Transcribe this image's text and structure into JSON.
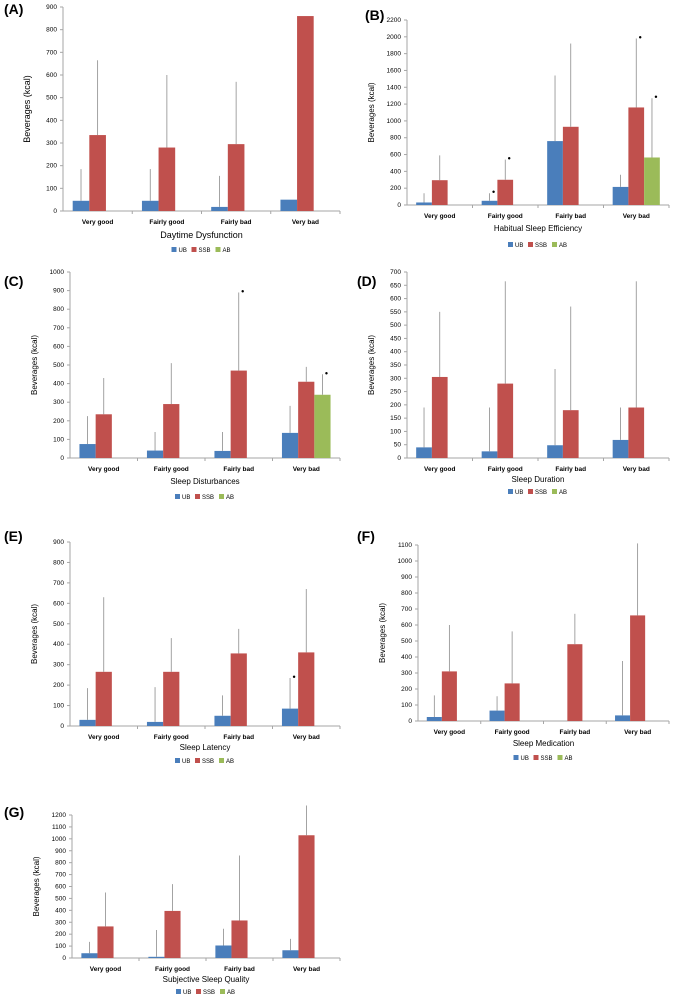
{
  "colors": {
    "UB": "#4a7ebb",
    "SSB": "#c0504d",
    "AB": "#9bbb59",
    "axis": "#a6a6a6",
    "error": "#8c8c8c"
  },
  "legend_labels": [
    "UB",
    "SSB",
    "AB"
  ],
  "chart_data": [
    {
      "type": "bar",
      "label": "(A)",
      "title": "Daytime Dysfunction",
      "ylabel": "Beverages (kcal)",
      "categories": [
        "Very good",
        "Fairly good",
        "Fairly bad",
        "Very bad"
      ],
      "ylim": [
        0,
        900
      ],
      "ytick_step": 100,
      "yticks": [
        "0",
        "100",
        "200",
        "300",
        "400",
        "500",
        "600",
        "700",
        "800",
        "900"
      ],
      "series": [
        {
          "name": "UB",
          "values": [
            45,
            45,
            18,
            50
          ],
          "error": [
            185,
            185,
            155,
            null
          ]
        },
        {
          "name": "SSB",
          "values": [
            335,
            280,
            295,
            860
          ],
          "error": [
            665,
            600,
            570,
            null
          ]
        },
        {
          "name": "AB",
          "values": [
            null,
            null,
            null,
            null
          ],
          "error": [
            null,
            null,
            null,
            null
          ]
        }
      ],
      "significance": []
    },
    {
      "type": "bar",
      "label": "(B)",
      "title": "Habitual Sleep Efficiency",
      "ylabel": "Beverages (kcal)",
      "categories": [
        "Very good",
        "Fairly good",
        "Fairly bad",
        "Very bad"
      ],
      "ylim": [
        0,
        2200
      ],
      "ytick_step": 200,
      "yticks": [
        "0",
        "200",
        "400",
        "600",
        "800",
        "1000",
        "1200",
        "1400",
        "1600",
        "1800",
        "2000",
        "2200"
      ],
      "series": [
        {
          "name": "UB",
          "values": [
            30,
            50,
            760,
            215
          ],
          "error": [
            140,
            140,
            1540,
            360
          ]
        },
        {
          "name": "SSB",
          "values": [
            295,
            300,
            930,
            1160
          ],
          "error": [
            590,
            540,
            1920,
            1980
          ]
        },
        {
          "name": "AB",
          "values": [
            null,
            null,
            null,
            565
          ],
          "error": [
            null,
            null,
            null,
            1270
          ]
        }
      ],
      "significance": [
        {
          "series": "UB",
          "category": "Fairly good",
          "mark": "•"
        },
        {
          "series": "SSB",
          "category": "Fairly good",
          "mark": "•"
        },
        {
          "series": "SSB",
          "category": "Very bad",
          "mark": "•"
        },
        {
          "series": "AB",
          "category": "Very bad",
          "mark": "•"
        }
      ]
    },
    {
      "type": "bar",
      "label": "(C)",
      "title": "Sleep Disturbances",
      "ylabel": "Beverages (kcal)",
      "categories": [
        "Very good",
        "Fairly good",
        "Fairly bad",
        "Very bad"
      ],
      "ylim": [
        0,
        1000
      ],
      "ytick_step": 100,
      "yticks": [
        "0",
        "100",
        "200",
        "300",
        "400",
        "500",
        "600",
        "700",
        "800",
        "900",
        "1000"
      ],
      "series": [
        {
          "name": "UB",
          "values": [
            75,
            40,
            38,
            135
          ],
          "error": [
            225,
            140,
            140,
            280
          ]
        },
        {
          "name": "SSB",
          "values": [
            235,
            290,
            470,
            410
          ],
          "error": [
            430,
            510,
            890,
            490
          ]
        },
        {
          "name": "AB",
          "values": [
            null,
            null,
            null,
            340
          ],
          "error": [
            null,
            null,
            null,
            450
          ]
        }
      ],
      "significance": [
        {
          "series": "SSB",
          "category": "Fairly bad",
          "mark": "•"
        },
        {
          "series": "AB",
          "category": "Very bad",
          "mark": "•"
        }
      ]
    },
    {
      "type": "bar",
      "label": "(D)",
      "title": "Sleep Duration",
      "ylabel": "Beverages (kcal)",
      "categories": [
        "Very good",
        "Fairly good",
        "Fairly bad",
        "Very bad"
      ],
      "ylim": [
        0,
        700
      ],
      "ytick_step": 50,
      "yticks": [
        "0",
        "50",
        "100",
        "150",
        "200",
        "250",
        "300",
        "350",
        "400",
        "450",
        "500",
        "550",
        "600",
        "650",
        "700"
      ],
      "series": [
        {
          "name": "UB",
          "values": [
            40,
            25,
            48,
            68
          ],
          "error": [
            190,
            190,
            335,
            190
          ]
        },
        {
          "name": "SSB",
          "values": [
            305,
            280,
            180,
            190
          ],
          "error": [
            550,
            665,
            570,
            665
          ]
        },
        {
          "name": "AB",
          "values": [
            null,
            null,
            null,
            null
          ],
          "error": [
            null,
            null,
            null,
            null
          ]
        }
      ],
      "significance": []
    },
    {
      "type": "bar",
      "label": "(E)",
      "title": "Sleep Latency",
      "ylabel": "Beverages (kcal)",
      "categories": [
        "Very good",
        "Fairly good",
        "Fairly bad",
        "Very bad"
      ],
      "ylim": [
        0,
        900
      ],
      "ytick_step": 100,
      "yticks": [
        "0",
        "100",
        "200",
        "300",
        "400",
        "500",
        "600",
        "700",
        "800",
        "900"
      ],
      "series": [
        {
          "name": "UB",
          "values": [
            30,
            20,
            50,
            85
          ],
          "error": [
            185,
            190,
            150,
            235
          ]
        },
        {
          "name": "SSB",
          "values": [
            265,
            265,
            355,
            360
          ],
          "error": [
            630,
            430,
            475,
            670
          ]
        },
        {
          "name": "AB",
          "values": [
            null,
            null,
            null,
            null
          ],
          "error": [
            null,
            null,
            null,
            null
          ]
        }
      ],
      "significance": [
        {
          "series": "UB",
          "category": "Very bad",
          "mark": "•"
        }
      ]
    },
    {
      "type": "bar",
      "label": "(F)",
      "title": "Sleep Medication",
      "ylabel": "Beverages (kcal)",
      "categories": [
        "Very good",
        "Fairly good",
        "Fairly bad",
        "Very bad"
      ],
      "ylim": [
        0,
        1100
      ],
      "ytick_step": 100,
      "yticks": [
        "0",
        "100",
        "200",
        "300",
        "400",
        "500",
        "600",
        "700",
        "800",
        "900",
        "1000",
        "1100"
      ],
      "series": [
        {
          "name": "UB",
          "values": [
            25,
            65,
            null,
            35
          ],
          "error": [
            160,
            155,
            null,
            375
          ]
        },
        {
          "name": "SSB",
          "values": [
            310,
            235,
            480,
            660
          ],
          "error": [
            600,
            560,
            670,
            1110
          ]
        },
        {
          "name": "AB",
          "values": [
            null,
            null,
            null,
            null
          ],
          "error": [
            null,
            null,
            null,
            null
          ]
        }
      ],
      "significance": []
    },
    {
      "type": "bar",
      "label": "(G)",
      "title": "Subjective Sleep Quality",
      "ylabel": "Beverages (kcal)",
      "categories": [
        "Very good",
        "Fairly good",
        "Fairly bad",
        "Very bad"
      ],
      "ylim": [
        0,
        1200
      ],
      "ytick_step": 100,
      "yticks": [
        "0",
        "100",
        "200",
        "300",
        "400",
        "500",
        "600",
        "700",
        "800",
        "900",
        "1000",
        "1100",
        "1200"
      ],
      "series": [
        {
          "name": "UB",
          "values": [
            40,
            10,
            105,
            65
          ],
          "error": [
            135,
            235,
            245,
            160
          ]
        },
        {
          "name": "SSB",
          "values": [
            265,
            395,
            315,
            1030
          ],
          "error": [
            550,
            620,
            860,
            1280
          ]
        },
        {
          "name": "AB",
          "values": [
            null,
            null,
            null,
            null
          ],
          "error": [
            null,
            null,
            null,
            null
          ]
        }
      ],
      "significance": []
    }
  ]
}
